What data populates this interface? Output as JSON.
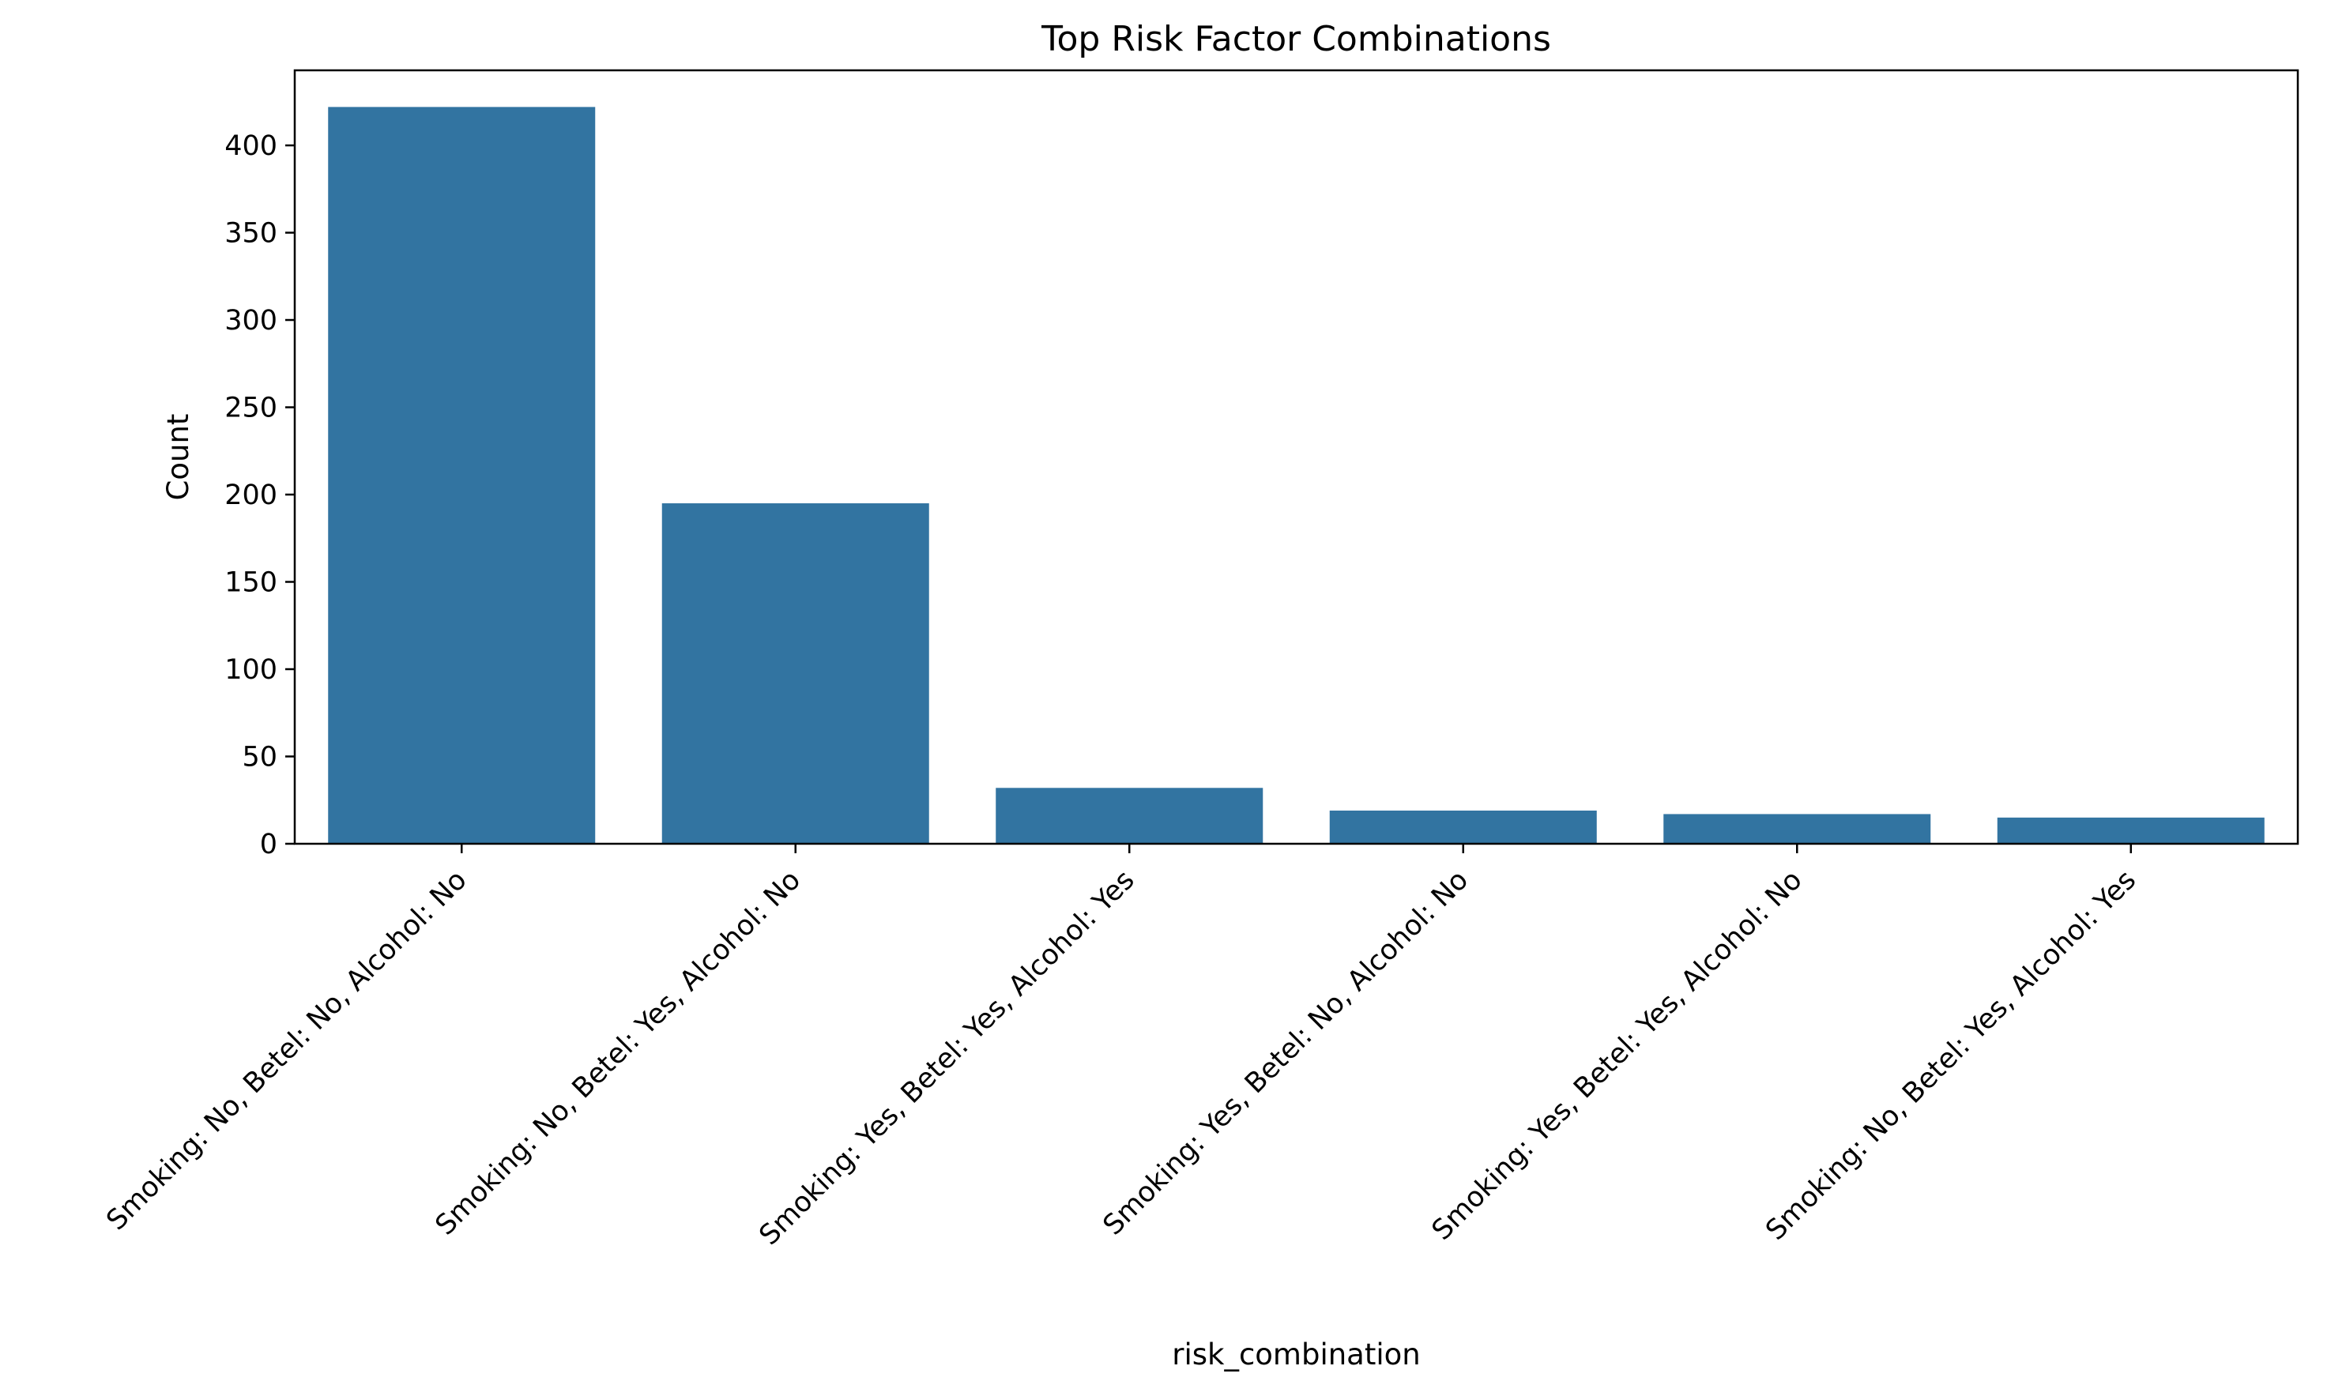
{
  "chart_data": {
    "type": "bar",
    "title": "Top Risk Factor Combinations",
    "xlabel": "risk_combination",
    "ylabel": "Count",
    "categories": [
      "Smoking: No, Betel: No, Alcohol: No",
      "Smoking: No, Betel: Yes, Alcohol: No",
      "Smoking: Yes, Betel: Yes, Alcohol: Yes",
      "Smoking: Yes, Betel: No, Alcohol: No",
      "Smoking: Yes, Betel: Yes, Alcohol: No",
      "Smoking: No, Betel: Yes, Alcohol: Yes"
    ],
    "values": [
      422,
      195,
      32,
      19,
      17,
      15
    ],
    "ylim": [
      0,
      443
    ],
    "yticks": [
      0,
      50,
      100,
      150,
      200,
      250,
      300,
      350,
      400
    ],
    "bar_color": "#3274a1",
    "grid": false,
    "legend": "none"
  }
}
